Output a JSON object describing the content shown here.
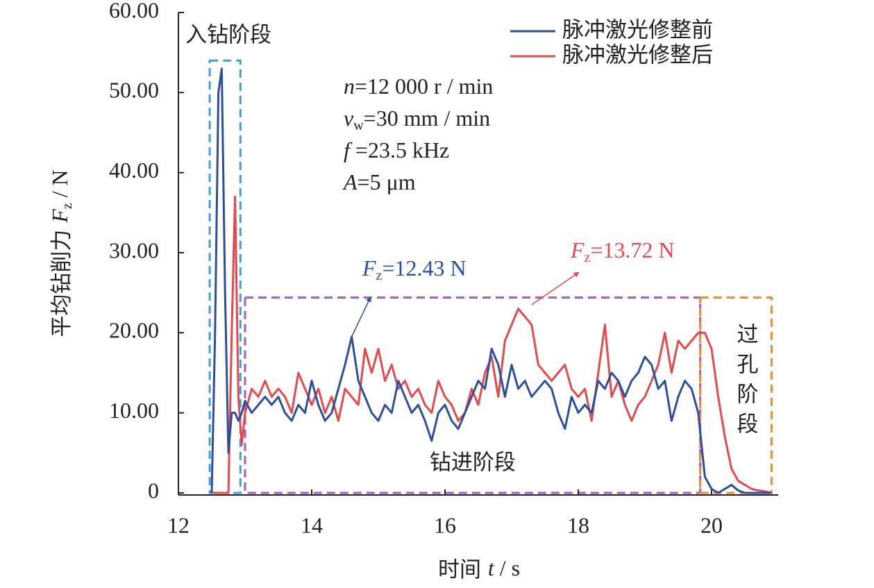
{
  "chart_data": {
    "type": "line",
    "xlabel": {
      "pre": "时间 ",
      "symbol": "t",
      "post": " / s"
    },
    "ylabel": {
      "pre": "平均钻削力 ",
      "symbol": "F",
      "sub": "z",
      "post": " / N"
    },
    "xlim": [
      12,
      21
    ],
    "ylim": [
      0,
      60
    ],
    "xticks": [
      12,
      14,
      16,
      18,
      20
    ],
    "yticks": [
      0,
      {
        "value": 10,
        "label": "10.00"
      },
      {
        "value": 20,
        "label": "20.00"
      },
      {
        "value": 30,
        "label": "30.00"
      },
      {
        "value": 40,
        "label": "40.00"
      },
      {
        "value": 50,
        "label": "50.00"
      },
      {
        "value": 60,
        "label": "60.00"
      }
    ],
    "legend": "upper right",
    "x": [
      12.5,
      12.55,
      12.6,
      12.65,
      12.7,
      12.75,
      12.8,
      12.85,
      12.9,
      12.95,
      13.0,
      13.1,
      13.2,
      13.3,
      13.4,
      13.5,
      13.6,
      13.7,
      13.8,
      13.9,
      14.0,
      14.1,
      14.2,
      14.3,
      14.4,
      14.5,
      14.6,
      14.7,
      14.8,
      14.9,
      15.0,
      15.1,
      15.2,
      15.3,
      15.4,
      15.5,
      15.6,
      15.7,
      15.8,
      15.9,
      16.0,
      16.1,
      16.2,
      16.3,
      16.4,
      16.5,
      16.6,
      16.7,
      16.8,
      16.9,
      17.0,
      17.1,
      17.2,
      17.3,
      17.4,
      17.5,
      17.6,
      17.7,
      17.8,
      17.9,
      18.0,
      18.1,
      18.2,
      18.3,
      18.4,
      18.5,
      18.6,
      18.7,
      18.8,
      18.9,
      19.0,
      19.1,
      19.2,
      19.3,
      19.4,
      19.5,
      19.6,
      19.7,
      19.8,
      19.9,
      20.0,
      20.1,
      20.2,
      20.3,
      20.4,
      20.5,
      20.6,
      20.7,
      20.8,
      20.9
    ],
    "series": [
      {
        "name": "脉冲激光修整前",
        "color": "#2b4f9f",
        "values": [
          0,
          20,
          50,
          53,
          25,
          5,
          10,
          10,
          9,
          10,
          11.5,
          10,
          11,
          12,
          11,
          12,
          10,
          9,
          11,
          10,
          14,
          11,
          9,
          10,
          13,
          16,
          19.5,
          14,
          12,
          10,
          9,
          11,
          10,
          14,
          12,
          10,
          11,
          9,
          6.5,
          10,
          11,
          9,
          8,
          10,
          12,
          14,
          13,
          18,
          16,
          12,
          16,
          13,
          14,
          12,
          13,
          14,
          13,
          10,
          8,
          12,
          10,
          11,
          10,
          14,
          13,
          15,
          14,
          12,
          14,
          15,
          17,
          16,
          13,
          14,
          9,
          12,
          14,
          13,
          10,
          2,
          0.5,
          0,
          0.5,
          1,
          0.3,
          0,
          0,
          0,
          0,
          0
        ]
      },
      {
        "name": "脉冲激光修整后",
        "color": "#e8474b",
        "values": [
          0,
          0,
          0,
          0,
          0,
          0,
          20,
          37,
          12,
          6,
          10,
          13,
          12,
          14,
          12,
          13,
          12,
          10,
          15,
          13,
          11,
          13,
          10,
          12,
          9,
          13,
          12,
          11,
          18,
          15,
          18,
          14,
          16,
          13,
          14,
          12,
          13,
          11,
          10,
          14,
          12,
          11,
          9,
          10,
          13,
          11,
          15,
          17,
          12,
          19,
          21,
          23,
          22,
          21,
          16,
          15,
          14,
          15,
          16,
          13,
          12,
          13,
          9,
          15,
          21,
          12,
          14,
          11,
          9,
          11,
          12,
          14,
          16,
          20,
          15,
          19,
          18,
          19,
          20,
          20,
          18,
          12,
          7,
          3,
          1.5,
          1,
          0.5,
          0.3,
          0.2,
          0
        ]
      }
    ],
    "regions": [
      {
        "label": "入钻阶段",
        "color": "#3fa0d8",
        "xlim": [
          12.47,
          12.93
        ],
        "ylim": [
          0,
          54
        ]
      },
      {
        "label": "钻进阶段",
        "color": "#a05cc0",
        "xlim": [
          13.0,
          19.83
        ],
        "ylim": [
          0,
          24.4
        ]
      },
      {
        "label": "过孔阶段",
        "color": "#f08a30",
        "xlim": [
          19.83,
          20.9
        ],
        "ylim": [
          0,
          24.4
        ]
      }
    ],
    "parameters": [
      {
        "symbol": "n",
        "post": "=12 000 r / min"
      },
      {
        "symbol": "v",
        "sub": "w",
        "post": "=30 mm / min"
      },
      {
        "symbol": "f",
        "post": " =23.5 kHz"
      },
      {
        "symbol": "A",
        "post": "=5 μm"
      }
    ],
    "annotations": [
      {
        "symbol": "F",
        "sub": "z",
        "post": "=12.43 N",
        "color": "#2b4f9f",
        "arrow": [
          14.6,
          19.5,
          14.88,
          24.4
        ]
      },
      {
        "symbol": "F",
        "sub": "z",
        "post": "=13.72 N",
        "color": "#e8474b",
        "arrow": [
          17.3,
          23.5,
          18.0,
          27.5
        ]
      }
    ]
  }
}
